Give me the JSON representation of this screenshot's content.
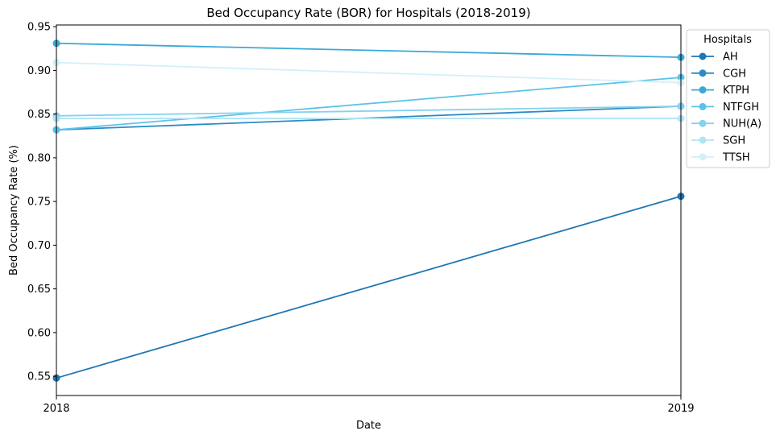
{
  "chart_data": {
    "type": "line",
    "title": "Bed Occupancy Rate (BOR) for Hospitals (2018-2019)",
    "xlabel": "Date",
    "ylabel": "Bed Occupancy Rate (%)",
    "x": [
      "2018",
      "2019"
    ],
    "xlim": [
      0,
      1
    ],
    "ylim": [
      0.528,
      0.952
    ],
    "yticks": [
      "0.55",
      "0.60",
      "0.65",
      "0.70",
      "0.75",
      "0.80",
      "0.85",
      "0.90",
      "0.95"
    ],
    "ytick_values": [
      0.55,
      0.6,
      0.65,
      0.7,
      0.75,
      0.8,
      0.85,
      0.9,
      0.95
    ],
    "grid": false,
    "legend": {
      "title": "Hospitals",
      "placement": "upper-right, outside plot"
    },
    "series": [
      {
        "name": "AH",
        "values": [
          0.548,
          0.756
        ],
        "color": "#1f77b4"
      },
      {
        "name": "CGH",
        "values": [
          0.832,
          0.859
        ],
        "color": "#2b8cc4"
      },
      {
        "name": "KTPH",
        "values": [
          0.931,
          0.915
        ],
        "color": "#3aa9d8"
      },
      {
        "name": "NTFGH",
        "values": [
          0.832,
          0.892
        ],
        "color": "#5bc3e8"
      },
      {
        "name": "NUH(A)",
        "values": [
          0.848,
          0.859
        ],
        "color": "#84d2ef"
      },
      {
        "name": "SGH",
        "values": [
          0.845,
          0.845
        ],
        "color": "#b2e3f5"
      },
      {
        "name": "TTSH",
        "values": [
          0.909,
          0.886
        ],
        "color": "#d2f0fa"
      }
    ]
  }
}
